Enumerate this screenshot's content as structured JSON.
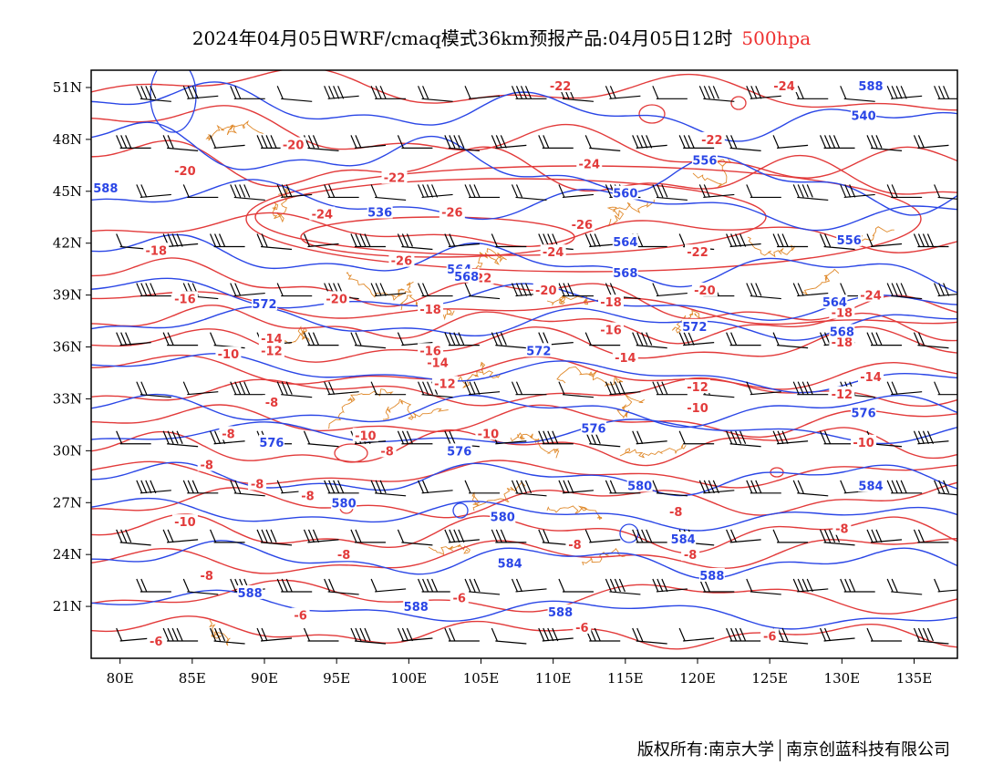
{
  "title": {
    "main": "2024年04月05日WRF/cmaq模式36km预报产品:04月05日12时",
    "level": "500hpa"
  },
  "footer": {
    "copyright": "版权所有:南京大学",
    "company": "南京创蓝科技有限公司"
  },
  "colors": {
    "height_contour": "#2a46e6",
    "temperature_contour": "#e23a3a",
    "boundary": "#e08a2c",
    "wind_barb": "#000000"
  },
  "map": {
    "lon_range": [
      78,
      138
    ],
    "lat_range": [
      18,
      52
    ],
    "lon_ticks": [
      80,
      85,
      90,
      95,
      100,
      105,
      110,
      115,
      120,
      125,
      130,
      135
    ],
    "lon_tick_labels": [
      "80E",
      "85E",
      "90E",
      "95E",
      "100E",
      "105E",
      "110E",
      "115E",
      "120E",
      "125E",
      "130E",
      "135E"
    ],
    "lat_ticks": [
      21,
      24,
      27,
      30,
      33,
      36,
      39,
      42,
      45,
      48,
      51
    ],
    "lat_tick_labels": [
      "21N",
      "24N",
      "27N",
      "30N",
      "33N",
      "36N",
      "39N",
      "42N",
      "45N",
      "48N",
      "51N"
    ]
  },
  "height_labels": [
    {
      "text": "588",
      "lon": 79,
      "lat": 45.2
    },
    {
      "text": "536",
      "lon": 98,
      "lat": 43.8
    },
    {
      "text": "560",
      "lon": 115,
      "lat": 44.9
    },
    {
      "text": "556",
      "lon": 120.5,
      "lat": 46.8
    },
    {
      "text": "588",
      "lon": 132,
      "lat": 51.1
    },
    {
      "text": "540",
      "lon": 131.5,
      "lat": 49.4
    },
    {
      "text": "564",
      "lon": 103.5,
      "lat": 40.5
    },
    {
      "text": "564",
      "lon": 115,
      "lat": 42.1
    },
    {
      "text": "568",
      "lon": 104,
      "lat": 40.1
    },
    {
      "text": "568",
      "lon": 115,
      "lat": 40.3
    },
    {
      "text": "556",
      "lon": 130.5,
      "lat": 42.2
    },
    {
      "text": "572",
      "lon": 90,
      "lat": 38.5
    },
    {
      "text": "572",
      "lon": 109,
      "lat": 35.8
    },
    {
      "text": "572",
      "lon": 119.8,
      "lat": 37.2
    },
    {
      "text": "564",
      "lon": 129.5,
      "lat": 38.6
    },
    {
      "text": "568",
      "lon": 130,
      "lat": 36.9
    },
    {
      "text": "576",
      "lon": 90.5,
      "lat": 30.5
    },
    {
      "text": "576",
      "lon": 103.5,
      "lat": 30.0
    },
    {
      "text": "576",
      "lon": 112.8,
      "lat": 31.3
    },
    {
      "text": "576",
      "lon": 131.5,
      "lat": 32.2
    },
    {
      "text": "580",
      "lon": 95.5,
      "lat": 27.0
    },
    {
      "text": "580",
      "lon": 106.5,
      "lat": 26.2
    },
    {
      "text": "580",
      "lon": 116,
      "lat": 28.0
    },
    {
      "text": "584",
      "lon": 107,
      "lat": 23.5
    },
    {
      "text": "584",
      "lon": 119,
      "lat": 24.9
    },
    {
      "text": "584",
      "lon": 132,
      "lat": 28.0
    },
    {
      "text": "588",
      "lon": 89,
      "lat": 21.8
    },
    {
      "text": "588",
      "lon": 100.5,
      "lat": 21.0
    },
    {
      "text": "588",
      "lon": 110.5,
      "lat": 20.7
    },
    {
      "text": "588",
      "lon": 121,
      "lat": 22.8
    }
  ],
  "temperature_labels": [
    {
      "text": "-22",
      "lon": 110.5,
      "lat": 51.1
    },
    {
      "text": "-24",
      "lon": 126,
      "lat": 51.1
    },
    {
      "text": "-20",
      "lon": 92,
      "lat": 47.7
    },
    {
      "text": "-20",
      "lon": 84.5,
      "lat": 46.2
    },
    {
      "text": "-22",
      "lon": 99,
      "lat": 45.8
    },
    {
      "text": "-24",
      "lon": 112.5,
      "lat": 46.6
    },
    {
      "text": "-22",
      "lon": 121,
      "lat": 48.0
    },
    {
      "text": "-26",
      "lon": 103,
      "lat": 43.8
    },
    {
      "text": "-24",
      "lon": 94,
      "lat": 43.7
    },
    {
      "text": "-26",
      "lon": 112,
      "lat": 43.1
    },
    {
      "text": "-26",
      "lon": 99.5,
      "lat": 41.0
    },
    {
      "text": "-24",
      "lon": 110,
      "lat": 41.5
    },
    {
      "text": "-22",
      "lon": 105,
      "lat": 40.0
    },
    {
      "text": "-20",
      "lon": 109.5,
      "lat": 39.3
    },
    {
      "text": "-22",
      "lon": 120,
      "lat": 41.5
    },
    {
      "text": "-20",
      "lon": 120.5,
      "lat": 39.3
    },
    {
      "text": "-24",
      "lon": 132,
      "lat": 39.0
    },
    {
      "text": "-18",
      "lon": 82.5,
      "lat": 41.6
    },
    {
      "text": "-16",
      "lon": 84.5,
      "lat": 38.8
    },
    {
      "text": "-20",
      "lon": 95,
      "lat": 38.8
    },
    {
      "text": "-18",
      "lon": 101.5,
      "lat": 38.2
    },
    {
      "text": "-18",
      "lon": 114,
      "lat": 38.6
    },
    {
      "text": "-16",
      "lon": 114,
      "lat": 37.0
    },
    {
      "text": "-18",
      "lon": 130,
      "lat": 38.0
    },
    {
      "text": "-18",
      "lon": 130,
      "lat": 36.3
    },
    {
      "text": "-14",
      "lon": 90.5,
      "lat": 36.5
    },
    {
      "text": "-12",
      "lon": 90.5,
      "lat": 35.8
    },
    {
      "text": "-10",
      "lon": 87.5,
      "lat": 35.6
    },
    {
      "text": "-16",
      "lon": 101.5,
      "lat": 35.8
    },
    {
      "text": "-14",
      "lon": 102,
      "lat": 35.1
    },
    {
      "text": "-12",
      "lon": 102.5,
      "lat": 33.9
    },
    {
      "text": "-14",
      "lon": 115,
      "lat": 35.4
    },
    {
      "text": "-12",
      "lon": 120,
      "lat": 33.7
    },
    {
      "text": "-14",
      "lon": 132,
      "lat": 34.3
    },
    {
      "text": "-12",
      "lon": 130,
      "lat": 33.3
    },
    {
      "text": "-10",
      "lon": 120,
      "lat": 32.5
    },
    {
      "text": "-8",
      "lon": 90.5,
      "lat": 32.8
    },
    {
      "text": "-8",
      "lon": 87.5,
      "lat": 31.0
    },
    {
      "text": "-10",
      "lon": 97,
      "lat": 30.9
    },
    {
      "text": "-8",
      "lon": 98.5,
      "lat": 30.0
    },
    {
      "text": "-10",
      "lon": 105.5,
      "lat": 31.0
    },
    {
      "text": "-10",
      "lon": 131.5,
      "lat": 30.5
    },
    {
      "text": "-8",
      "lon": 86,
      "lat": 29.2
    },
    {
      "text": "-8",
      "lon": 89.5,
      "lat": 28.1
    },
    {
      "text": "-8",
      "lon": 93,
      "lat": 27.4
    },
    {
      "text": "-10",
      "lon": 84.5,
      "lat": 25.9
    },
    {
      "text": "-8",
      "lon": 95.5,
      "lat": 24.0
    },
    {
      "text": "-8",
      "lon": 111.5,
      "lat": 24.6
    },
    {
      "text": "-8",
      "lon": 118.5,
      "lat": 26.5
    },
    {
      "text": "-8",
      "lon": 119.5,
      "lat": 24.0
    },
    {
      "text": "-8",
      "lon": 130,
      "lat": 25.5
    },
    {
      "text": "-8",
      "lon": 86,
      "lat": 22.8
    },
    {
      "text": "-6",
      "lon": 103.5,
      "lat": 21.5
    },
    {
      "text": "-6",
      "lon": 92.5,
      "lat": 20.5
    },
    {
      "text": "-6",
      "lon": 82.5,
      "lat": 19.0
    },
    {
      "text": "-6",
      "lon": 112,
      "lat": 19.8
    },
    {
      "text": "-6",
      "lon": 125,
      "lat": 19.3
    }
  ]
}
